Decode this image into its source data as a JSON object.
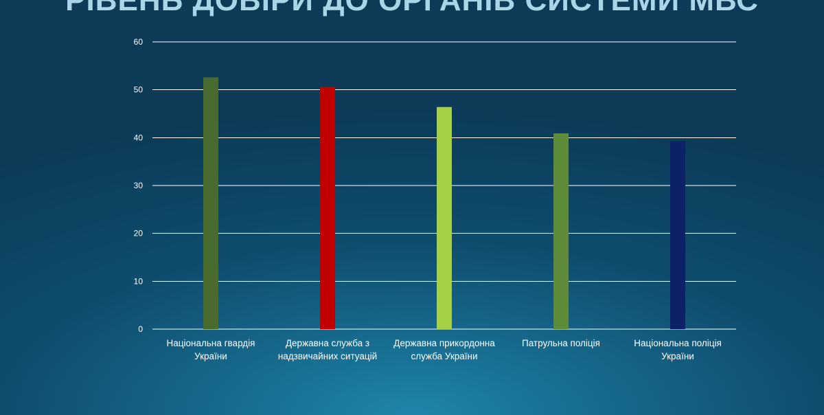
{
  "title": "РІВЕНЬ ДОВІРИ ДО ОРГАНІВ СИСТЕМИ МВС",
  "chart_data": {
    "type": "bar",
    "title": "РІВЕНЬ ДОВІРИ ДО ОРГАНІВ СИСТЕМИ МВС",
    "categories": [
      [
        "Національна гвардія",
        "України"
      ],
      [
        "Державна служба з",
        "надзвичайних ситуацій"
      ],
      [
        "Державна прикордонна",
        "служба України"
      ],
      [
        "Патрульна поліція"
      ],
      [
        "Національна поліція",
        "України"
      ]
    ],
    "values": [
      52.6,
      50.6,
      46.4,
      40.9,
      39.3
    ],
    "colors": [
      "#4a6b2f",
      "#c00000",
      "#a6d048",
      "#5e8c3a",
      "#0c2168"
    ],
    "ylim": [
      0,
      60
    ],
    "yticks": [
      "0",
      "10",
      "20",
      "30",
      "40",
      "50",
      "60"
    ],
    "grid": true,
    "legend": "none"
  }
}
